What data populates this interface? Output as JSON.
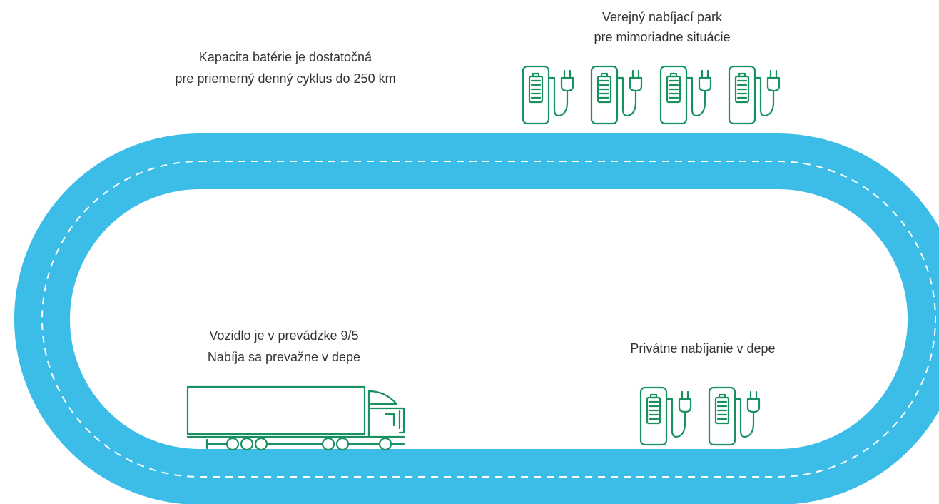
{
  "labels": {
    "battery": [
      "Kapacita batérie je dostatočná",
      "pre priemerný denný cyklus do 250 km"
    ],
    "public": [
      "Verejný nabíjací park",
      "pre mimoriadne situácie"
    ],
    "vehicle": [
      "Vozidlo je v prevádzke 9/5",
      "Nabíja sa prevažne v depe"
    ],
    "depot": [
      "Privátne nabíjanie v depe"
    ]
  }
}
